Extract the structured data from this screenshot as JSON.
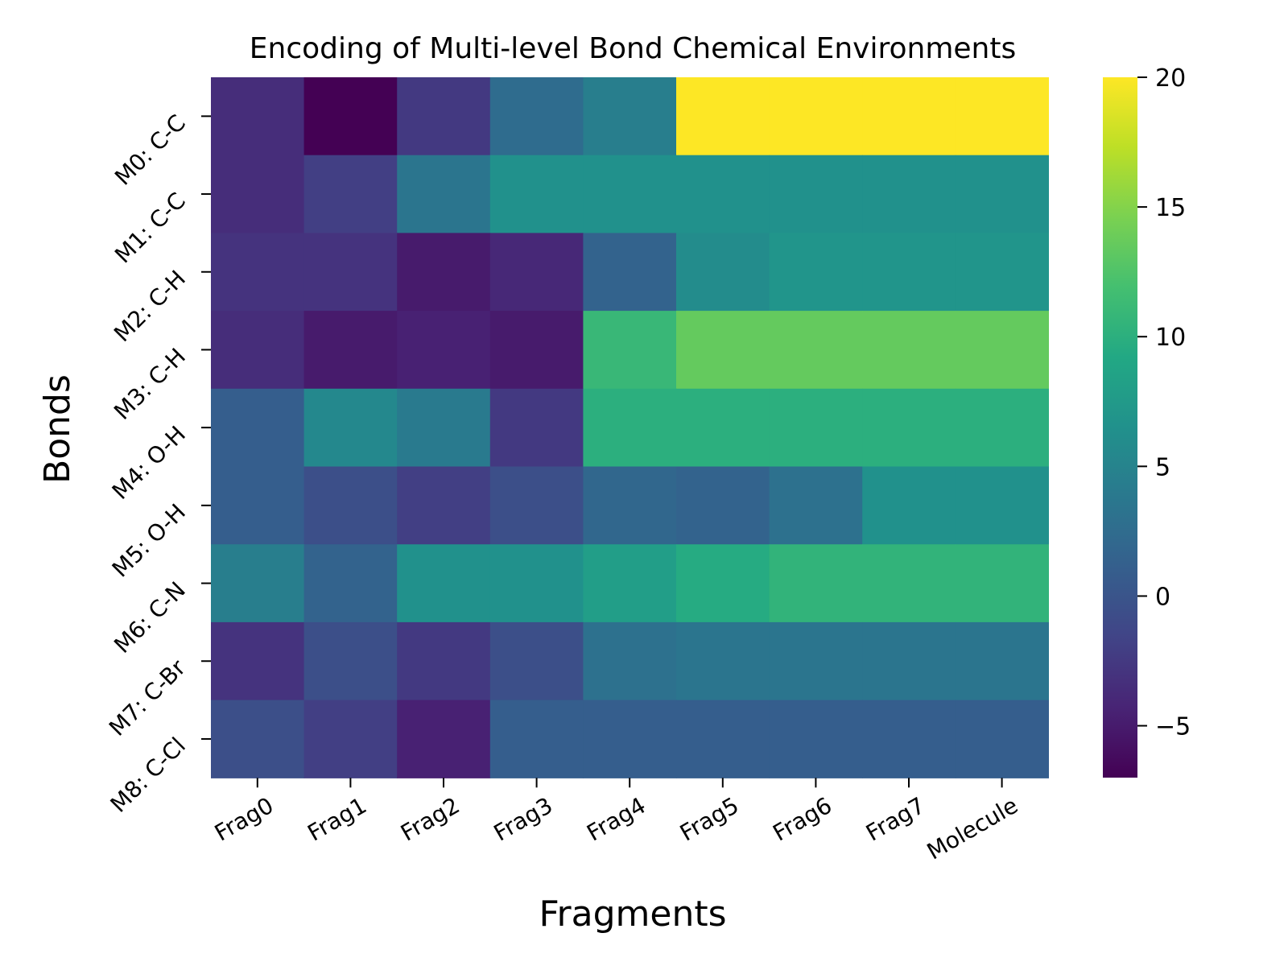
{
  "chart_data": {
    "type": "heatmap",
    "title": "Encoding of Multi-level Bond Chemical Environments",
    "xlabel": "Fragments",
    "ylabel": "Bonds",
    "x_categories": [
      "Frag0",
      "Frag1",
      "Frag2",
      "Frag3",
      "Frag4",
      "Frag5",
      "Frag6",
      "Frag7",
      "Molecule"
    ],
    "y_categories": [
      "M0: C-C",
      "M1: C-C",
      "M2: C-H",
      "M3: C-H",
      "M4: O-H",
      "M5: O-H",
      "M6: C-N",
      "M7: C-Br",
      "M8: C-Cl"
    ],
    "values": [
      [
        -3.5,
        -7.0,
        -2.5,
        2.5,
        4.5,
        20,
        20,
        20,
        20
      ],
      [
        -3.5,
        -2.0,
        3.5,
        6.5,
        6.5,
        6.5,
        6.5,
        6.5,
        6.5
      ],
      [
        -3.0,
        -3.0,
        -5.0,
        -4.0,
        1.5,
        6.0,
        7.0,
        7.0,
        7.0
      ],
      [
        -3.5,
        -5.0,
        -4.5,
        -5.0,
        11.0,
        13.5,
        13.5,
        13.5,
        13.5
      ],
      [
        1.0,
        5.5,
        4.0,
        -2.5,
        10.0,
        10.0,
        10.0,
        10.0,
        10.0
      ],
      [
        1.0,
        -0.5,
        -2.0,
        -0.5,
        2.0,
        1.5,
        3.0,
        6.5,
        6.5
      ],
      [
        4.5,
        1.5,
        6.5,
        6.5,
        8.0,
        9.5,
        10.5,
        10.5,
        10.5
      ],
      [
        -3.0,
        -0.5,
        -2.5,
        -0.5,
        3.0,
        3.5,
        3.5,
        3.5,
        3.5
      ],
      [
        -0.5,
        -2.0,
        -4.5,
        1.0,
        1.0,
        1.0,
        1.0,
        1.0,
        1.0
      ]
    ],
    "colorscale": "viridis",
    "vmin": -7,
    "vmax": 20,
    "colorbar_ticks": [
      -5,
      0,
      5,
      10,
      15,
      20
    ],
    "colorbar_tick_labels": [
      "−5",
      "0",
      "5",
      "10",
      "15",
      "20"
    ]
  }
}
